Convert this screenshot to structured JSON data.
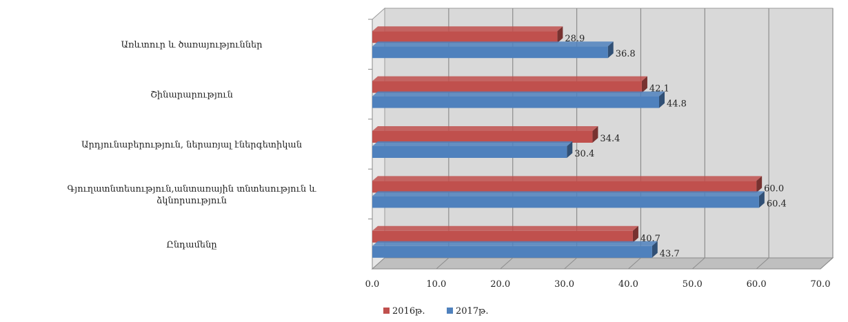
{
  "chart_data": {
    "type": "bar",
    "orientation": "horizontal",
    "style": "3d",
    "categories": [
      "Առևտուր և ծառայություններ",
      "Շինարարություն",
      "Արդյունաբերություն,  ներառյալ էներգետիկան",
      "Գյուղատնտեսություն,անտառային տնտեսություն և ձկնորսություն",
      "Ընդամենը"
    ],
    "category_lines": [
      [
        "Առևտուր և ծառայություններ"
      ],
      [
        "Շինարարություն"
      ],
      [
        "Արդյունաբերություն,  ներառյալ էներգետիկան"
      ],
      [
        "Գյուղատնտեսություն,անտառային տնտեսություն և",
        "ձկնորսություն"
      ],
      [
        "Ընդամենը"
      ]
    ],
    "series": [
      {
        "name": "2016թ.",
        "values": [
          28.9,
          42.1,
          34.4,
          60.0,
          40.7
        ],
        "color": "#c0504d"
      },
      {
        "name": "2017թ.",
        "values": [
          36.8,
          44.8,
          30.4,
          60.4,
          43.7
        ],
        "color": "#4f81bd"
      }
    ],
    "xlim": [
      0,
      70
    ],
    "xticks": [
      "0.0",
      "10.0",
      "20.0",
      "30.0",
      "40.0",
      "50.0",
      "60.0",
      "70.0"
    ],
    "grid": true,
    "legend_position": "bottom"
  },
  "colors": {
    "plot_wall": "#d9d9d9",
    "floor": "#bfbfbf",
    "grid": "#8c8c8c"
  }
}
